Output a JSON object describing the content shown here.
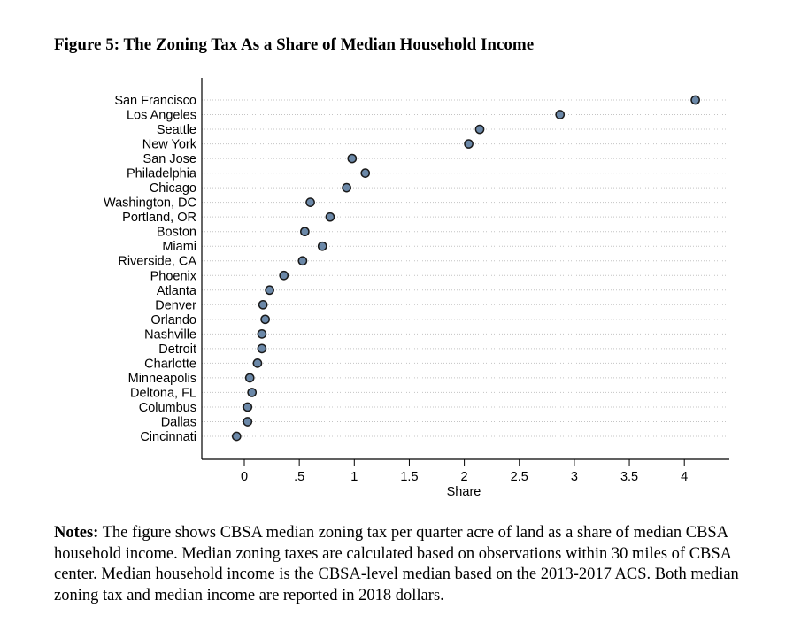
{
  "figure": {
    "title": "Figure 5:  The Zoning Tax As a Share of Median Household Income"
  },
  "notes": {
    "label": "Notes:",
    "text": " The figure shows CBSA median zoning tax per quarter acre of land as a share of median CBSA household income. Median zoning taxes are calculated based on observations within 30 miles of CBSA center. Median household income is the CBSA-level median based on the 2013-2017 ACS. Both median zoning tax and median income are reported in 2018 dollars."
  },
  "chart_data": {
    "type": "scatter",
    "title": "",
    "xlabel": "Share",
    "ylabel": "",
    "xlim": [
      -0.38,
      4.35
    ],
    "x_ticks": [
      0,
      0.5,
      1,
      1.5,
      2,
      2.5,
      3,
      3.5,
      4
    ],
    "x_tick_labels": [
      "0",
      ".5",
      "1",
      "1.5",
      "2",
      "2.5",
      "3",
      "3.5",
      "4"
    ],
    "grid": "dotted horizontal guide lines per category",
    "marker_color": "#6b88a8",
    "marker_edge": "#1a1a1a",
    "categories": [
      "San Francisco",
      "Los Angeles",
      "Seattle",
      "New York",
      "San Jose",
      "Philadelphia",
      "Chicago",
      "Washington, DC",
      "Portland, OR",
      "Boston",
      "Miami",
      "Riverside, CA",
      "Phoenix",
      "Atlanta",
      "Denver",
      "Orlando",
      "Nashville",
      "Detroit",
      "Charlotte",
      "Minneapolis",
      "Deltona, FL",
      "Columbus",
      "Dallas",
      "Cincinnati"
    ],
    "values": [
      4.1,
      2.87,
      2.14,
      2.04,
      0.98,
      1.1,
      0.93,
      0.6,
      0.78,
      0.55,
      0.71,
      0.53,
      0.36,
      0.23,
      0.17,
      0.19,
      0.16,
      0.16,
      0.12,
      0.05,
      0.07,
      0.03,
      0.03,
      -0.07
    ]
  }
}
